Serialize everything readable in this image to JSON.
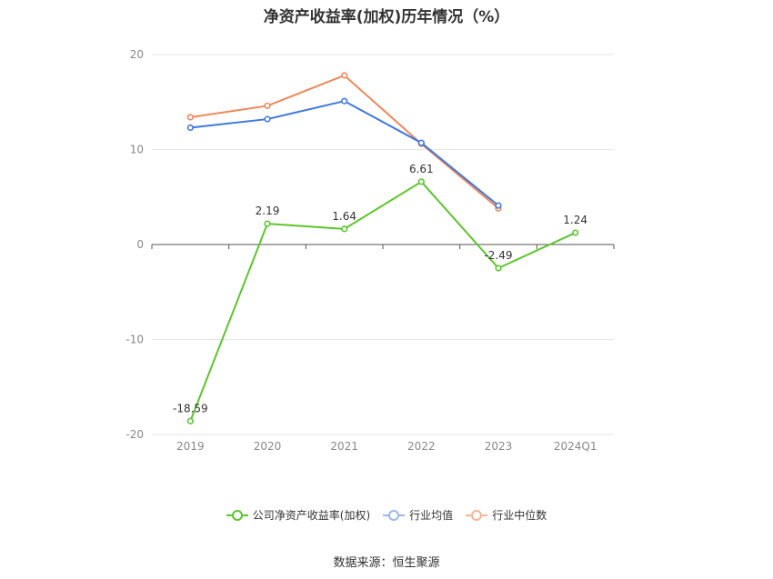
{
  "chart_data": {
    "type": "line",
    "title": "净资产收益率(加权)历年情况（%）",
    "categories": [
      "2019",
      "2020",
      "2021",
      "2022",
      "2023",
      "2024Q1"
    ],
    "ylim": [
      -20,
      20
    ],
    "yticks": [
      20,
      10,
      0,
      -10,
      -20
    ],
    "grid": true,
    "legend_position": "bottom",
    "series": [
      {
        "name": "公司净资产收益率(加权)",
        "color": "#5cc52c",
        "values": [
          -18.59,
          2.19,
          1.64,
          6.61,
          -2.49,
          1.24
        ],
        "labels": [
          "-18.59",
          "2.19",
          "1.64",
          "6.61",
          "-2.49",
          "1.24"
        ]
      },
      {
        "name": "行业均值",
        "color": "#3f78de",
        "values": [
          12.3,
          13.2,
          15.1,
          10.7,
          4.1,
          null
        ]
      },
      {
        "name": "行业中位数",
        "color": "#f0875a",
        "values": [
          13.4,
          14.6,
          17.8,
          10.6,
          3.8,
          null
        ]
      }
    ]
  },
  "legend_colors_faded": [
    "#5cc52c",
    "#9ab8ea",
    "#f5b596"
  ],
  "source": "数据来源：恒生聚源"
}
